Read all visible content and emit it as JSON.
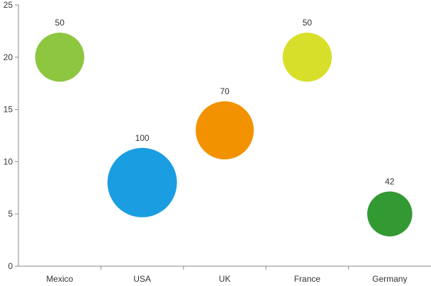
{
  "chart_data": {
    "type": "scatter",
    "variant": "bubble",
    "title": "",
    "xlabel": "",
    "ylabel": "",
    "categories": [
      "Mexico",
      "USA",
      "UK",
      "France",
      "Germany"
    ],
    "ylim": [
      0,
      25
    ],
    "yticks": [
      0,
      5,
      10,
      15,
      20,
      25
    ],
    "grid": false,
    "legend": "none",
    "points": [
      {
        "category": "Mexico",
        "y": 20,
        "size": 50,
        "label": "50",
        "color": "#8dc63f"
      },
      {
        "category": "USA",
        "y": 8,
        "size": 100,
        "label": "100",
        "color": "#1b9de2"
      },
      {
        "category": "UK",
        "y": 13,
        "size": 70,
        "label": "70",
        "color": "#f39200"
      },
      {
        "category": "France",
        "y": 20,
        "size": 50,
        "label": "50",
        "color": "#d7df2a"
      },
      {
        "category": "Germany",
        "y": 5,
        "size": 42,
        "label": "42",
        "color": "#339933"
      }
    ]
  }
}
